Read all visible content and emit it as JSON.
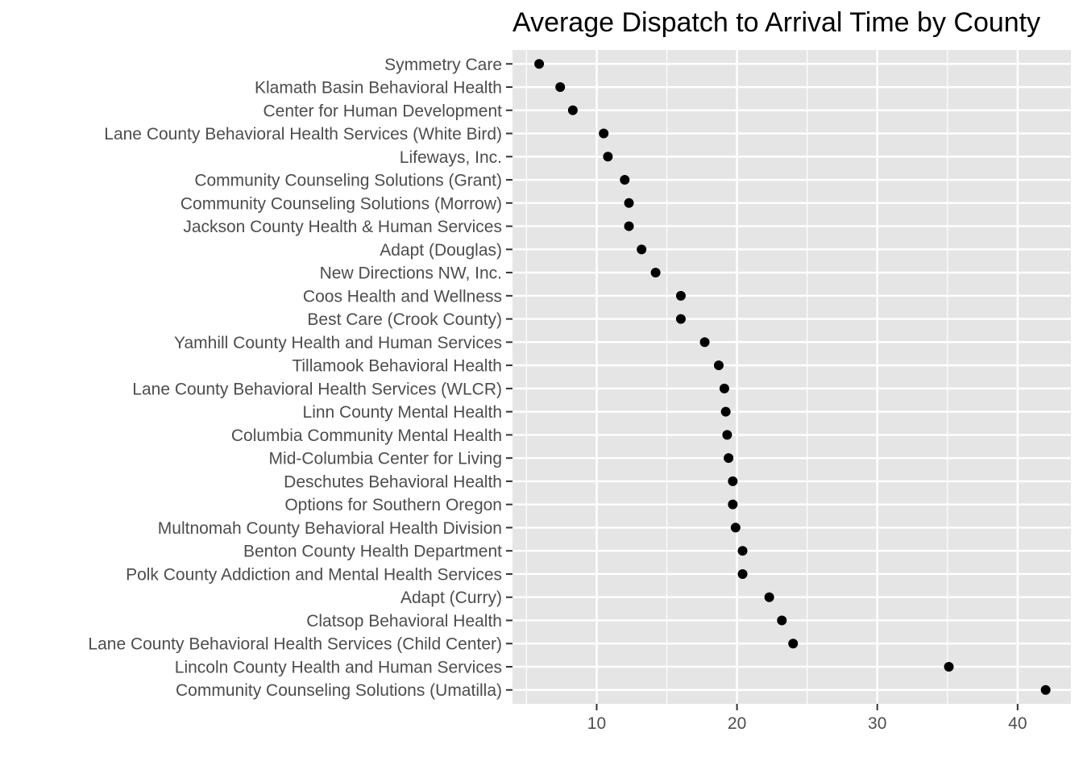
{
  "chart_data": {
    "type": "scatter",
    "title": "Average Dispatch to Arrival Time by County",
    "xlabel": "",
    "ylabel": "",
    "xlim": [
      4,
      43.8
    ],
    "x_ticks": [
      10,
      20,
      30,
      40
    ],
    "x_tick_labels": [
      "10",
      "20",
      "30",
      "40"
    ],
    "grid": true,
    "legend": "none",
    "colors": {
      "panel": "#e5e5e5",
      "grid": "#ffffff",
      "point": "#000000",
      "tick_text": "#4d4d4d"
    },
    "categories": [
      "Symmetry Care",
      "Klamath Basin Behavioral Health",
      "Center for Human Development",
      "Lane County Behavioral Health Services (White Bird)",
      "Lifeways, Inc.",
      "Community Counseling Solutions (Grant)",
      "Community Counseling Solutions (Morrow)",
      "Jackson County Health & Human Services",
      "Adapt (Douglas)",
      "New Directions NW, Inc.",
      "Coos Health and Wellness",
      "Best Care (Crook County)",
      "Yamhill County Health and Human Services",
      "Tillamook Behavioral Health",
      "Lane County Behavioral Health Services (WLCR)",
      "Linn County Mental Health",
      "Columbia Community Mental Health",
      "Mid-Columbia Center for Living",
      "Deschutes Behavioral Health",
      "Options for Southern Oregon",
      "Multnomah County Behavioral Health Division",
      "Benton County Health Department",
      "Polk County Addiction and Mental Health Services",
      "Adapt (Curry)",
      "Clatsop Behavioral Health",
      "Lane County Behavioral Health Services (Child Center)",
      "Lincoln County Health and Human Services",
      "Community Counseling Solutions (Umatilla)"
    ],
    "values": [
      5.9,
      7.4,
      8.3,
      10.5,
      10.8,
      12.0,
      12.3,
      12.3,
      13.2,
      14.2,
      16.0,
      16.0,
      17.7,
      18.7,
      19.1,
      19.2,
      19.3,
      19.4,
      19.7,
      19.7,
      19.9,
      20.4,
      20.4,
      22.3,
      23.2,
      24.0,
      35.1,
      42.0
    ]
  }
}
